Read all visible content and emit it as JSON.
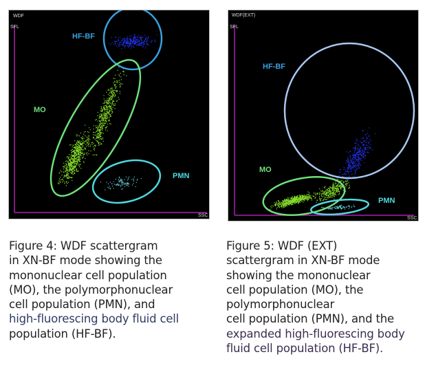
{
  "figures": [
    {
      "axis_title": "WDF",
      "x_axis_label": "SSC",
      "y_axis_label": "SFL",
      "populations": [
        {
          "label": "HF-BF",
          "color": "#3aa0e0",
          "dot_color": "#2233ee"
        },
        {
          "label": "MO",
          "color": "#6fe07a",
          "dot_color": "#88e02a"
        },
        {
          "label": "PMN",
          "color": "#50d8e0",
          "dot_color": "#5fc8cc"
        }
      ],
      "caption": [
        {
          "text": "Figure 4: WDF scattergram",
          "highlight": false
        },
        {
          "text": "in XN-BF mode showing the",
          "highlight": false
        },
        {
          "text": "mononuclear cell population",
          "highlight": false
        },
        {
          "text": "(MO), the polymorphonuclear",
          "highlight": false
        },
        {
          "text": "cell population (PMN), and",
          "highlight": false
        },
        {
          "text": "high-fluorescing body fluid cell",
          "highlight": true
        },
        {
          "text": "population (HF-BF).",
          "highlight": false
        }
      ]
    },
    {
      "axis_title": "WDF(EXT)",
      "x_axis_label": "SSC",
      "y_axis_label": "SFL",
      "populations": [
        {
          "label": "HF-BF",
          "color": "#a8c8f0",
          "dot_color": "#2233ee"
        },
        {
          "label": "MO",
          "color": "#6fe07a",
          "dot_color": "#88e02a"
        },
        {
          "label": "PMN",
          "color": "#50d8e0",
          "dot_color": "#5fc8cc"
        }
      ],
      "caption": [
        {
          "text": "Figure 5: WDF (EXT)",
          "highlight": false
        },
        {
          "text": "scattergram in XN-BF mode",
          "highlight": false
        },
        {
          "text": "showing the mononuclear",
          "highlight": false
        },
        {
          "text": "cell population (MO), the",
          "highlight": false
        },
        {
          "text": "polymorphonuclear",
          "highlight": false
        },
        {
          "text": "cell population (PMN), and the",
          "highlight": false
        },
        {
          "text": "expanded high-fluorescing body",
          "highlight": true
        },
        {
          "text": "fluid cell population (HF-BF).",
          "highlight": true
        }
      ]
    }
  ],
  "axis_color": "#b020b0"
}
